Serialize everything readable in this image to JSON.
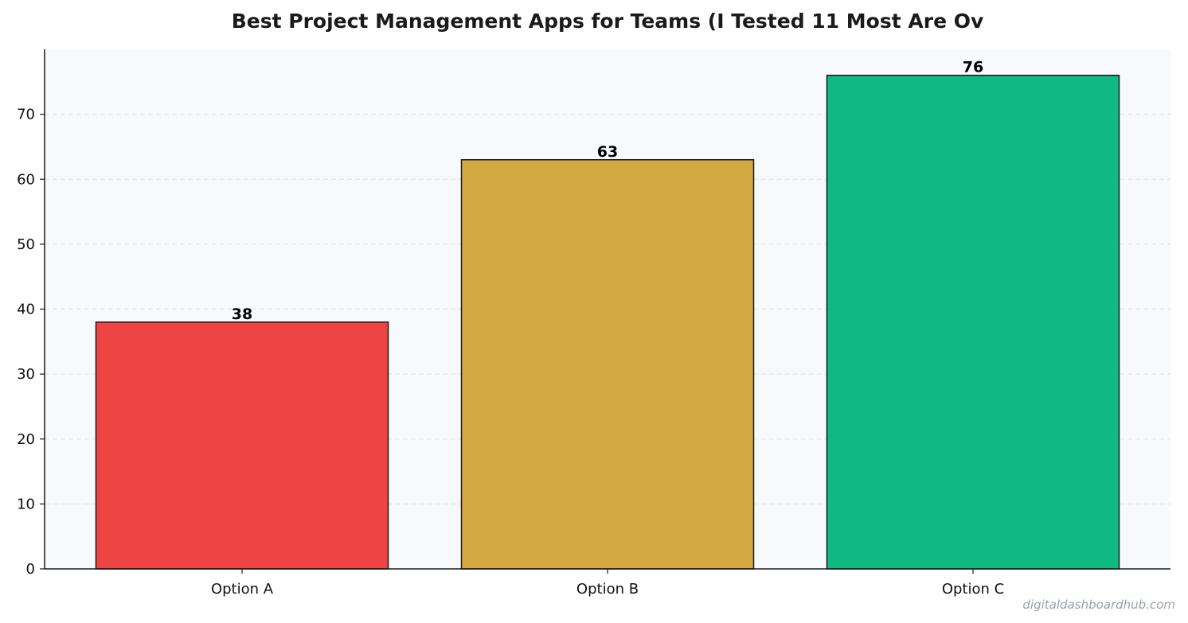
{
  "chart_data": {
    "type": "bar",
    "title": "Best Project Management Apps for Teams (I Tested 11   Most Are Ov",
    "xlabel": "",
    "ylabel": "",
    "categories": [
      "Option A",
      "Option B",
      "Option C"
    ],
    "values": [
      38,
      63,
      76
    ],
    "colors": [
      "#ef4444",
      "#d4a843",
      "#10b981"
    ],
    "edge_color": "#1a1a1a",
    "plot_background": "#f8f9fb",
    "ylim": [
      0,
      80
    ],
    "yticks": [
      0,
      10,
      20,
      30,
      40,
      50,
      60,
      70
    ],
    "grid": "horizontal dashed",
    "legend": "none",
    "data_labels": true
  },
  "watermark": "digitaldashboardhub.com"
}
